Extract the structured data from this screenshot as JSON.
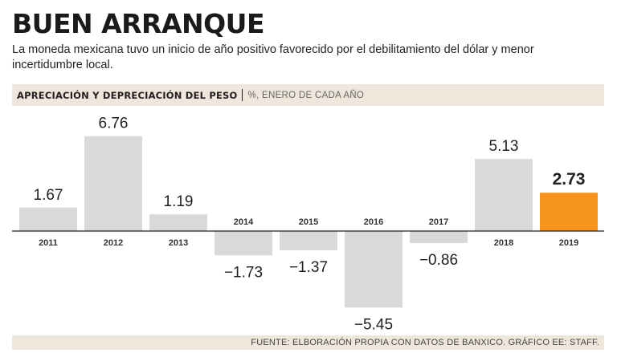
{
  "header": {
    "title": "BUEN ARRANQUE",
    "subtitle": "La moneda mexicana tuvo un inicio de año positivo favorecido por el debilitamiento del dólar y menor incertidumbre local."
  },
  "band": {
    "title": "APRECIACIÓN Y DEPRECIACIÓN DEL PESO",
    "unit": "%, ENERO DE CADA AÑO"
  },
  "chart_data": {
    "type": "bar",
    "title": "APRECIACIÓN Y DEPRECIACIÓN DEL PESO",
    "subtitle": "%, ENERO DE CADA AÑO",
    "xlabel": "",
    "ylabel": "%",
    "categories": [
      "2011",
      "2012",
      "2013",
      "2014",
      "2015",
      "2016",
      "2017",
      "2018",
      "2019"
    ],
    "values": [
      1.67,
      6.76,
      1.19,
      -1.73,
      -1.37,
      -5.45,
      -0.86,
      5.13,
      2.73
    ],
    "value_labels": [
      "1.67",
      "6.76",
      "1.19",
      "−1.73",
      "−1.37",
      "−5.45",
      "−0.86",
      "5.13",
      "2.73"
    ],
    "highlight_category": "2019",
    "ylim": [
      -6,
      7.5
    ],
    "grid": false,
    "colors": {
      "bar": "#d9d9db",
      "highlight": "#f7941d",
      "axis": "#231f20",
      "text": "#231f20"
    }
  },
  "footer": {
    "source": "FUENTE: ELBORACIÓN PROPIA CON DATOS DE BANXICO. GRÁFICO EE: STAFF."
  }
}
